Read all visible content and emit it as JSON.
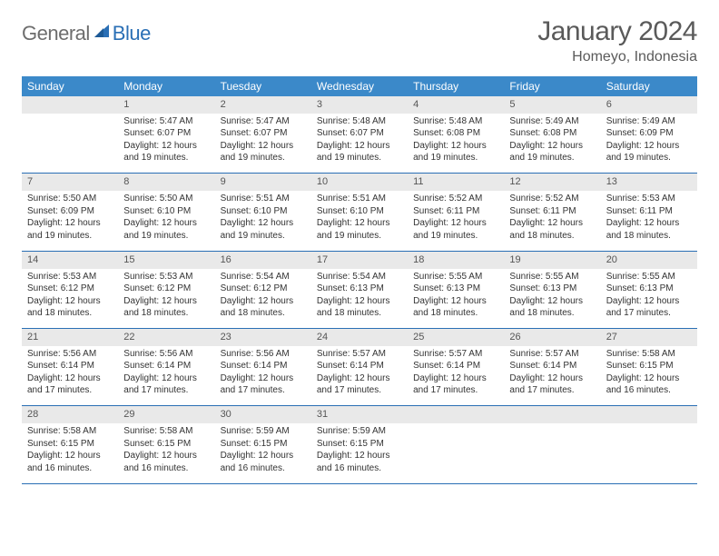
{
  "logo": {
    "general": "General",
    "blue": "Blue"
  },
  "title": "January 2024",
  "location": "Homeyo, Indonesia",
  "colors": {
    "header_bg": "#3b89c9",
    "rule": "#2a6fb5",
    "daynum_bg": "#e9e9e9",
    "text": "#333333",
    "muted": "#5a5a5a"
  },
  "day_headers": [
    "Sunday",
    "Monday",
    "Tuesday",
    "Wednesday",
    "Thursday",
    "Friday",
    "Saturday"
  ],
  "weeks": [
    {
      "nums": [
        "",
        "1",
        "2",
        "3",
        "4",
        "5",
        "6"
      ],
      "cells": [
        null,
        {
          "sunrise": "5:47 AM",
          "sunset": "6:07 PM",
          "daylight": "12 hours and 19 minutes."
        },
        {
          "sunrise": "5:47 AM",
          "sunset": "6:07 PM",
          "daylight": "12 hours and 19 minutes."
        },
        {
          "sunrise": "5:48 AM",
          "sunset": "6:07 PM",
          "daylight": "12 hours and 19 minutes."
        },
        {
          "sunrise": "5:48 AM",
          "sunset": "6:08 PM",
          "daylight": "12 hours and 19 minutes."
        },
        {
          "sunrise": "5:49 AM",
          "sunset": "6:08 PM",
          "daylight": "12 hours and 19 minutes."
        },
        {
          "sunrise": "5:49 AM",
          "sunset": "6:09 PM",
          "daylight": "12 hours and 19 minutes."
        }
      ]
    },
    {
      "nums": [
        "7",
        "8",
        "9",
        "10",
        "11",
        "12",
        "13"
      ],
      "cells": [
        {
          "sunrise": "5:50 AM",
          "sunset": "6:09 PM",
          "daylight": "12 hours and 19 minutes."
        },
        {
          "sunrise": "5:50 AM",
          "sunset": "6:10 PM",
          "daylight": "12 hours and 19 minutes."
        },
        {
          "sunrise": "5:51 AM",
          "sunset": "6:10 PM",
          "daylight": "12 hours and 19 minutes."
        },
        {
          "sunrise": "5:51 AM",
          "sunset": "6:10 PM",
          "daylight": "12 hours and 19 minutes."
        },
        {
          "sunrise": "5:52 AM",
          "sunset": "6:11 PM",
          "daylight": "12 hours and 19 minutes."
        },
        {
          "sunrise": "5:52 AM",
          "sunset": "6:11 PM",
          "daylight": "12 hours and 18 minutes."
        },
        {
          "sunrise": "5:53 AM",
          "sunset": "6:11 PM",
          "daylight": "12 hours and 18 minutes."
        }
      ]
    },
    {
      "nums": [
        "14",
        "15",
        "16",
        "17",
        "18",
        "19",
        "20"
      ],
      "cells": [
        {
          "sunrise": "5:53 AM",
          "sunset": "6:12 PM",
          "daylight": "12 hours and 18 minutes."
        },
        {
          "sunrise": "5:53 AM",
          "sunset": "6:12 PM",
          "daylight": "12 hours and 18 minutes."
        },
        {
          "sunrise": "5:54 AM",
          "sunset": "6:12 PM",
          "daylight": "12 hours and 18 minutes."
        },
        {
          "sunrise": "5:54 AM",
          "sunset": "6:13 PM",
          "daylight": "12 hours and 18 minutes."
        },
        {
          "sunrise": "5:55 AM",
          "sunset": "6:13 PM",
          "daylight": "12 hours and 18 minutes."
        },
        {
          "sunrise": "5:55 AM",
          "sunset": "6:13 PM",
          "daylight": "12 hours and 18 minutes."
        },
        {
          "sunrise": "5:55 AM",
          "sunset": "6:13 PM",
          "daylight": "12 hours and 17 minutes."
        }
      ]
    },
    {
      "nums": [
        "21",
        "22",
        "23",
        "24",
        "25",
        "26",
        "27"
      ],
      "cells": [
        {
          "sunrise": "5:56 AM",
          "sunset": "6:14 PM",
          "daylight": "12 hours and 17 minutes."
        },
        {
          "sunrise": "5:56 AM",
          "sunset": "6:14 PM",
          "daylight": "12 hours and 17 minutes."
        },
        {
          "sunrise": "5:56 AM",
          "sunset": "6:14 PM",
          "daylight": "12 hours and 17 minutes."
        },
        {
          "sunrise": "5:57 AM",
          "sunset": "6:14 PM",
          "daylight": "12 hours and 17 minutes."
        },
        {
          "sunrise": "5:57 AM",
          "sunset": "6:14 PM",
          "daylight": "12 hours and 17 minutes."
        },
        {
          "sunrise": "5:57 AM",
          "sunset": "6:14 PM",
          "daylight": "12 hours and 17 minutes."
        },
        {
          "sunrise": "5:58 AM",
          "sunset": "6:15 PM",
          "daylight": "12 hours and 16 minutes."
        }
      ]
    },
    {
      "nums": [
        "28",
        "29",
        "30",
        "31",
        "",
        "",
        ""
      ],
      "cells": [
        {
          "sunrise": "5:58 AM",
          "sunset": "6:15 PM",
          "daylight": "12 hours and 16 minutes."
        },
        {
          "sunrise": "5:58 AM",
          "sunset": "6:15 PM",
          "daylight": "12 hours and 16 minutes."
        },
        {
          "sunrise": "5:59 AM",
          "sunset": "6:15 PM",
          "daylight": "12 hours and 16 minutes."
        },
        {
          "sunrise": "5:59 AM",
          "sunset": "6:15 PM",
          "daylight": "12 hours and 16 minutes."
        },
        null,
        null,
        null
      ]
    }
  ],
  "labels": {
    "sunrise": "Sunrise: ",
    "sunset": "Sunset: ",
    "daylight": "Daylight: "
  }
}
